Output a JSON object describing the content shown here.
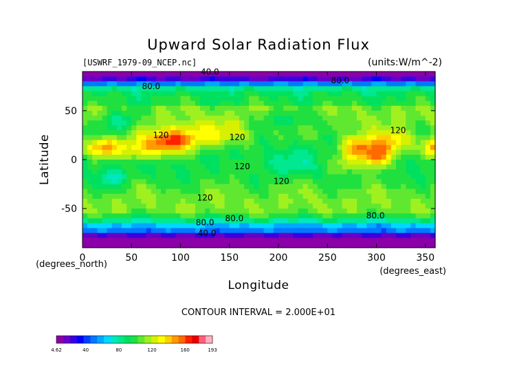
{
  "chart_data": {
    "type": "heatmap",
    "title": "Upward Solar Radiation Flux",
    "file_label": "[USWRF_1979-09_NCEP.nc]",
    "units_label": "(units:W/m^-2)",
    "xlabel": "Longitude",
    "x_unit_label": "(degrees_east)",
    "ylabel": "Latitude",
    "y_unit_label": "(degrees_north)",
    "xlim": [
      0,
      360
    ],
    "ylim": [
      -90,
      90
    ],
    "x_ticks": [
      0,
      50,
      100,
      150,
      200,
      250,
      300,
      350
    ],
    "y_ticks": [
      -50,
      0,
      50
    ],
    "contour_interval_text": "CONTOUR INTERVAL = 2.000E+01",
    "contour_labels": [
      {
        "text": "40.0",
        "x": 130,
        "y": 87
      },
      {
        "text": "80.0",
        "x": 70,
        "y": 72
      },
      {
        "text": "80.0",
        "x": 263,
        "y": 78
      },
      {
        "text": "120",
        "x": 322,
        "y": 27
      },
      {
        "text": "120",
        "x": 80,
        "y": 22
      },
      {
        "text": "120",
        "x": 158,
        "y": 20
      },
      {
        "text": "120",
        "x": 163,
        "y": -10
      },
      {
        "text": "120",
        "x": 203,
        "y": -25
      },
      {
        "text": "120",
        "x": 125,
        "y": -42
      },
      {
        "text": "80.0",
        "x": 125,
        "y": -67
      },
      {
        "text": "80.0",
        "x": 155,
        "y": -63
      },
      {
        "text": "80.0",
        "x": 299,
        "y": -60
      },
      {
        "text": "40.0",
        "x": 127,
        "y": -78
      }
    ],
    "colorbar": {
      "min_label": "4.62",
      "max_label": "193",
      "tick_labels": [
        "40",
        "80",
        "120",
        "160"
      ],
      "range": [
        4.62,
        193
      ],
      "colors": [
        "#8b00a8",
        "#6a00c8",
        "#3a00e0",
        "#0000ff",
        "#0040ff",
        "#0078ff",
        "#00a8ff",
        "#00d8ff",
        "#00e8c0",
        "#00e890",
        "#00e060",
        "#20e040",
        "#60e830",
        "#a0f020",
        "#d8f000",
        "#ffff00",
        "#ffd000",
        "#ff9a00",
        "#ff6a00",
        "#ff2000",
        "#e80000",
        "#ff6080",
        "#ffb0c0"
      ]
    }
  }
}
